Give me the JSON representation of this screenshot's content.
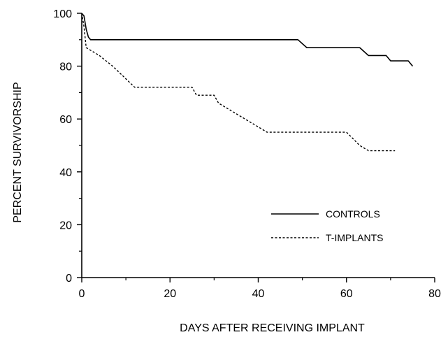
{
  "chart_data": {
    "type": "line",
    "title": "",
    "xlabel": "DAYS AFTER RECEIVING IMPLANT",
    "ylabel": "PERCENT SURVIVORSHIP",
    "xlim": [
      0,
      80
    ],
    "ylim": [
      0,
      100
    ],
    "xticks": [
      0,
      20,
      40,
      60,
      80
    ],
    "yticks": [
      0,
      20,
      40,
      60,
      80,
      100
    ],
    "grid": false,
    "legend_position": "lower-right",
    "series": [
      {
        "name": "CONTROLS",
        "style": "solid",
        "color": "#000000",
        "x": [
          0,
          0.5,
          1,
          1.5,
          2,
          49,
          51,
          63,
          65,
          69,
          70,
          74,
          75
        ],
        "y": [
          100,
          99,
          94,
          91,
          90,
          90,
          87,
          87,
          84,
          84,
          82,
          82,
          80
        ]
      },
      {
        "name": "T-IMPLANTS",
        "style": "dashed",
        "color": "#000000",
        "x": [
          0,
          0.5,
          1,
          2,
          4,
          7,
          12,
          25,
          26,
          30,
          31,
          35,
          37,
          40,
          42,
          60,
          63,
          65,
          71
        ],
        "y": [
          100,
          95,
          87,
          86,
          84,
          80,
          72,
          72,
          69,
          69,
          66,
          62,
          60,
          57,
          55,
          55,
          50,
          48,
          48
        ]
      }
    ]
  }
}
